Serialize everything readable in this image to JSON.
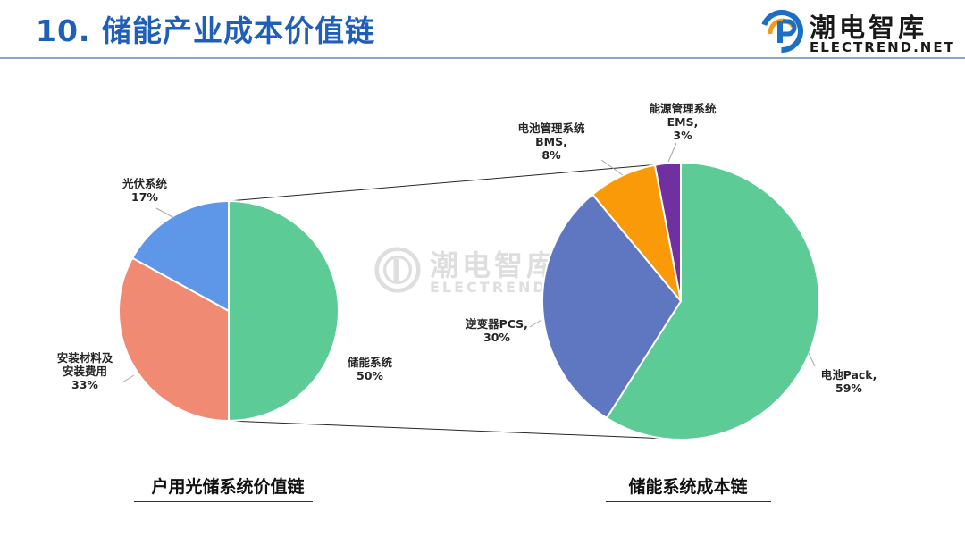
{
  "header": {
    "title": "10. 储能产业成本价值链",
    "logo": {
      "cn": "潮电智库",
      "en": "ELECTREND.NET"
    }
  },
  "watermark": {
    "cn": "潮电智库",
    "en": "ELECTREND.NET"
  },
  "chart_data": [
    {
      "type": "pie",
      "title": "户用光储系统价值链",
      "slices": [
        {
          "label": "储能系统",
          "value": 50,
          "pct_label": "50%",
          "color": "#5ccb95"
        },
        {
          "label": "安装材料及安装费用",
          "label_lines": [
            "安装材料及",
            "安装费用"
          ],
          "value": 33,
          "pct_label": "33%",
          "color": "#f08a72"
        },
        {
          "label": "光伏系统",
          "value": 17,
          "pct_label": "17%",
          "color": "#5e97e8"
        }
      ]
    },
    {
      "type": "pie",
      "title": "储能系统成本链",
      "slices": [
        {
          "label": "电池Pack",
          "value": 59,
          "pct_label": "59%",
          "color": "#5ccb95"
        },
        {
          "label": "逆变器PCS",
          "value": 30,
          "pct_label": "30%",
          "color": "#5f76c0"
        },
        {
          "label": "电池管理系统 BMS",
          "label_lines": [
            "电池管理系统",
            "BMS"
          ],
          "value": 8,
          "pct_label": "8%",
          "color": "#fb9a08"
        },
        {
          "label": "能源管理系统 EMS",
          "label_lines": [
            "能源管理系统",
            "EMS"
          ],
          "value": 3,
          "pct_label": "3%",
          "color": "#7030a0"
        }
      ]
    }
  ],
  "captions": {
    "left": "户用光储系统价值链",
    "right": "储能系统成本链"
  }
}
